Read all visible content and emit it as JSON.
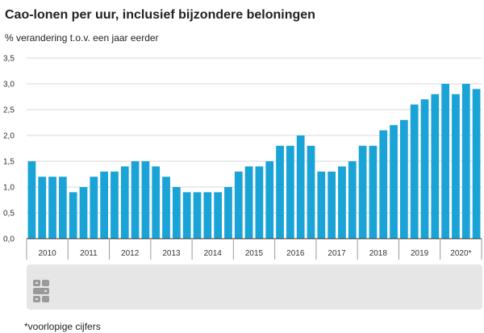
{
  "chart_data": {
    "type": "bar",
    "title": "Cao-lonen per uur, inclusief bijzondere beloningen",
    "subtitle": "% verandering t.o.v. een jaar eerder",
    "ylim": [
      0,
      3.5
    ],
    "yticks": [
      "0,0",
      "0,5",
      "1,0",
      "1,5",
      "2,0",
      "2,5",
      "3,0",
      "3,5"
    ],
    "grid": true,
    "color": "#1aa3d6",
    "years": [
      "2010",
      "2011",
      "2012",
      "2013",
      "2014",
      "2015",
      "2016",
      "2017",
      "2018",
      "2019",
      "2020*"
    ],
    "categories": [
      "2010 Q1",
      "2010 Q2",
      "2010 Q3",
      "2010 Q4",
      "2011 Q1",
      "2011 Q2",
      "2011 Q3",
      "2011 Q4",
      "2012 Q1",
      "2012 Q2",
      "2012 Q3",
      "2012 Q4",
      "2013 Q1",
      "2013 Q2",
      "2013 Q3",
      "2013 Q4",
      "2014 Q1",
      "2014 Q2",
      "2014 Q3",
      "2014 Q4",
      "2015 Q1",
      "2015 Q2",
      "2015 Q3",
      "2015 Q4",
      "2016 Q1",
      "2016 Q2",
      "2016 Q3",
      "2016 Q4",
      "2017 Q1",
      "2017 Q2",
      "2017 Q3",
      "2017 Q4",
      "2018 Q1",
      "2018 Q2",
      "2018 Q3",
      "2018 Q4",
      "2019 Q1",
      "2019 Q2",
      "2019 Q3",
      "2019 Q4",
      "2020 Q1",
      "2020 Q2",
      "2020 Q3",
      "2020 Q4"
    ],
    "values": [
      1.5,
      1.2,
      1.2,
      1.2,
      0.9,
      1.0,
      1.2,
      1.3,
      1.3,
      1.4,
      1.5,
      1.5,
      1.4,
      1.2,
      1.0,
      0.9,
      0.9,
      0.9,
      0.9,
      1.0,
      1.3,
      1.4,
      1.4,
      1.5,
      1.8,
      1.8,
      2.0,
      1.8,
      1.3,
      1.3,
      1.4,
      1.5,
      1.8,
      1.8,
      2.1,
      2.2,
      2.3,
      2.6,
      2.7,
      2.8,
      3.0,
      2.8,
      3.0,
      2.9
    ]
  },
  "footnote": "*voorlopige cijfers",
  "logo": {
    "icon": "cbs-logo-icon"
  }
}
